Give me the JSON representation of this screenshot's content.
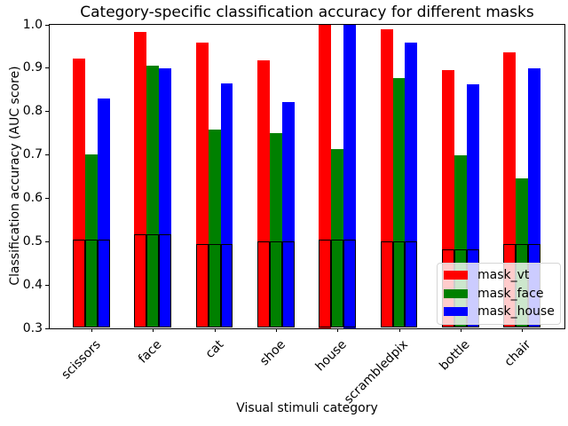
{
  "chart_data": {
    "type": "bar",
    "title": "Category-specific classification accuracy for different masks",
    "xlabel": "Visual stimuli category",
    "ylabel": "Classification accuracy (AUC score)",
    "categories": [
      "scissors",
      "face",
      "cat",
      "shoe",
      "house",
      "scrambledpix",
      "bottle",
      "chair"
    ],
    "series": [
      {
        "name": "mask_vt",
        "color": "#ff0000",
        "values": [
          0.921,
          0.982,
          0.958,
          0.917,
          1.0,
          0.989,
          0.894,
          0.936
        ]
      },
      {
        "name": "mask_face",
        "color": "#008000",
        "values": [
          0.7,
          0.905,
          0.757,
          0.749,
          0.713,
          0.876,
          0.699,
          0.645
        ]
      },
      {
        "name": "mask_house",
        "color": "#0000ff",
        "values": [
          0.83,
          0.898,
          0.864,
          0.821,
          1.0,
          0.959,
          0.861,
          0.898
        ]
      }
    ],
    "chance_level_bars": {
      "values": [
        0.504,
        0.515,
        0.494,
        0.499,
        0.504,
        0.5,
        0.481,
        0.494
      ],
      "edge_color": "#000000",
      "fill": "transparent"
    },
    "ylim": [
      0.3,
      1.0
    ],
    "ytick_step": 0.1,
    "grid": false,
    "legend": {
      "position": "lower right"
    }
  },
  "colors": {
    "background": "#ffffff",
    "spine": "#000000",
    "text": "#000000",
    "legend_bg": "rgba(255,255,255,0.8)",
    "legend_border": "#d5d5d5"
  }
}
